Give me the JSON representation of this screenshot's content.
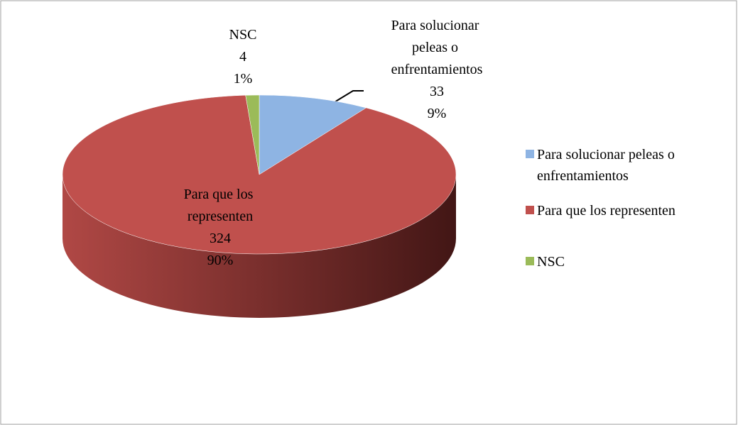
{
  "chart_data": {
    "type": "pie3d",
    "categories": [
      "Para solucionar peleas o enfrentamientos",
      "Para que los representen",
      "NSC"
    ],
    "values": [
      33,
      324,
      4
    ],
    "percent_values": [
      9,
      90,
      1
    ],
    "percent_labels": [
      "9%",
      "90%",
      "1%"
    ],
    "colors": [
      "#8eb4e3",
      "#c0504d",
      "#9bbb59"
    ],
    "legend": "right"
  }
}
